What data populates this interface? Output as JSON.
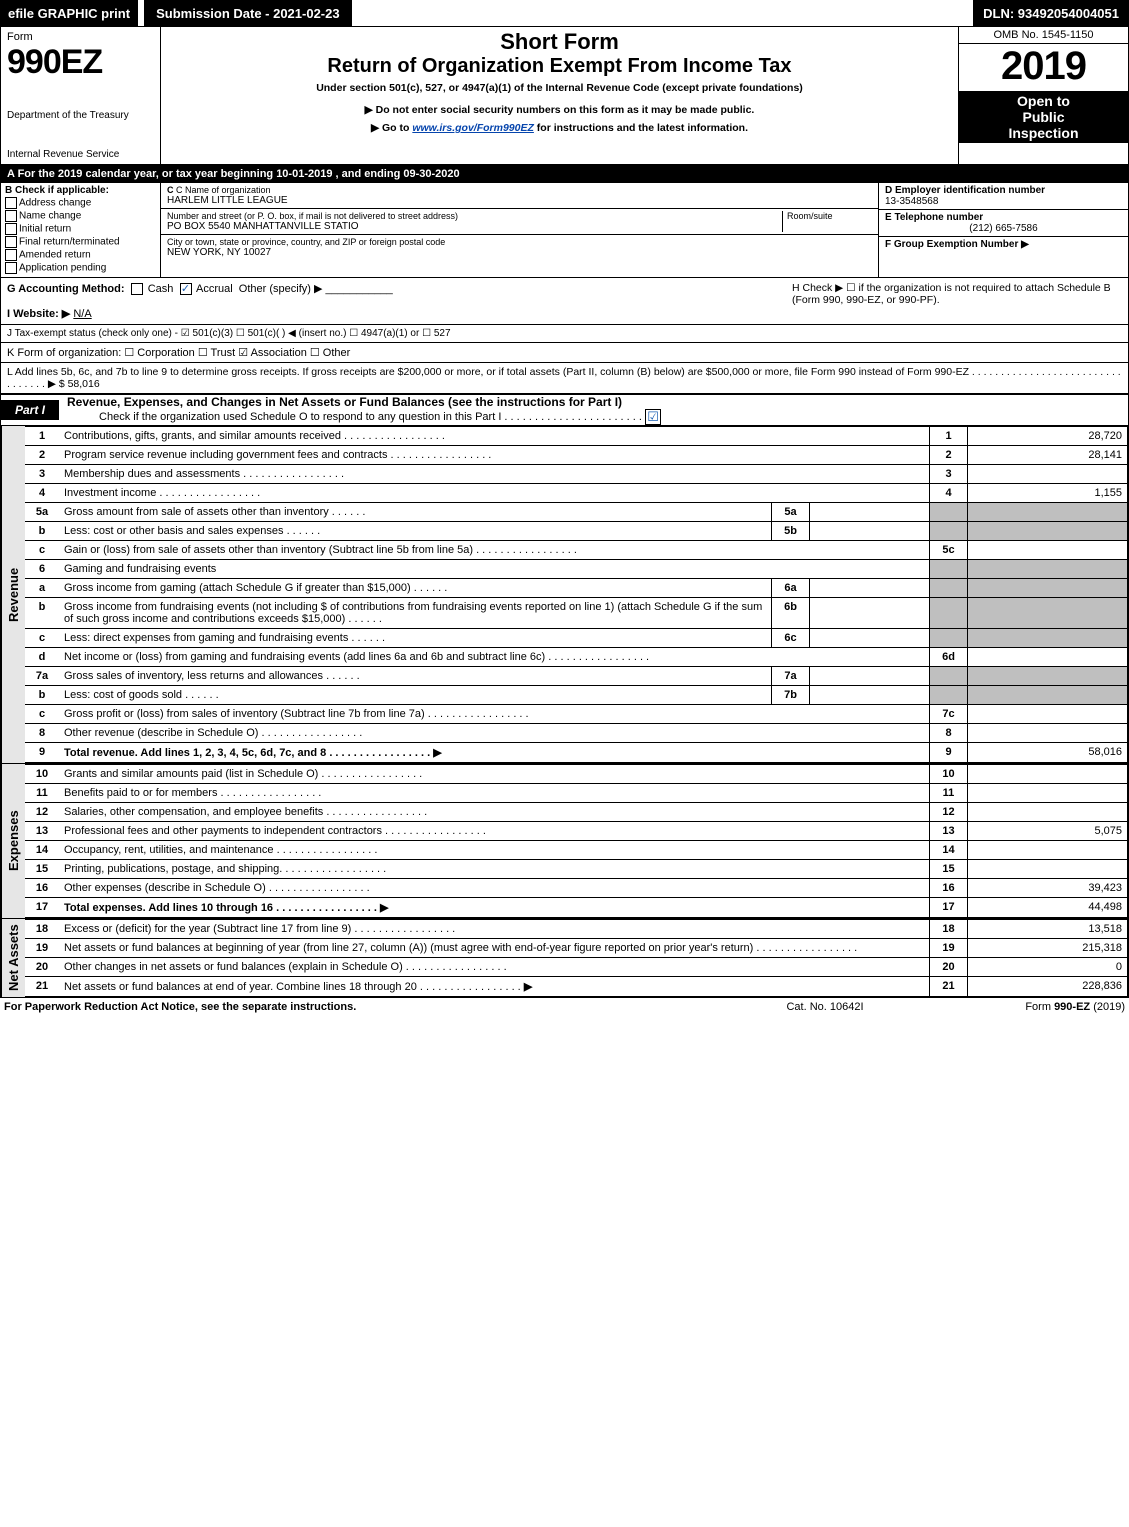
{
  "topbar": {
    "efile": "efile GRAPHIC print",
    "submission": "Submission Date - 2021-02-23",
    "dln": "DLN: 93492054004051"
  },
  "header": {
    "form_word": "Form",
    "form_number": "990EZ",
    "dept1": "Department of the Treasury",
    "dept2": "Internal Revenue Service",
    "short": "Short Form",
    "return": "Return of Organization Exempt From Income Tax",
    "under": "Under section 501(c), 527, or 4947(a)(1) of the Internal Revenue Code (except private foundations)",
    "no_ssn": "▶ Do not enter social security numbers on this form as it may be made public.",
    "goto_pre": "▶ Go to ",
    "goto_link": "www.irs.gov/Form990EZ",
    "goto_post": " for instructions and the latest information.",
    "omb": "OMB No. 1545-1150",
    "year": "2019",
    "open1": "Open to",
    "open2": "Public",
    "open3": "Inspection"
  },
  "taxyear": "A For the 2019 calendar year, or tax year beginning 10-01-2019 , and ending 09-30-2020",
  "boxB": {
    "title": "B Check if applicable:",
    "items": [
      "Address change",
      "Name change",
      "Initial return",
      "Final return/terminated",
      "Amended return",
      "Application pending"
    ]
  },
  "boxC": {
    "name_lbl": "C Name of organization",
    "name_val": "HARLEM LITTLE LEAGUE",
    "street_lbl": "Number and street (or P. O. box, if mail is not delivered to street address)",
    "room_lbl": "Room/suite",
    "street_val": "PO BOX 5540 MANHATTANVILLE STATIO",
    "city_lbl": "City or town, state or province, country, and ZIP or foreign postal code",
    "city_val": "NEW YORK, NY  10027"
  },
  "boxD": {
    "lbl": "D Employer identification number",
    "val": "13-3548568"
  },
  "boxE": {
    "lbl": "E Telephone number",
    "val": "(212) 665-7586"
  },
  "boxF": {
    "lbl": "F Group Exemption Number  ▶",
    "val": ""
  },
  "rowG": {
    "left_label": "G Accounting Method:",
    "cash": "Cash",
    "accrual": "Accrual",
    "other": "Other (specify) ▶",
    "H": "H  Check ▶  ☐  if the organization is not required to attach Schedule B (Form 990, 990-EZ, or 990-PF)."
  },
  "rowI": {
    "label": "I Website: ▶",
    "val": "N/A"
  },
  "rowJ": "J Tax-exempt status (check only one) - ☑ 501(c)(3)  ☐ 501(c)(  ) ◀ (insert no.)  ☐ 4947(a)(1) or  ☐ 527",
  "rowK": "K Form of organization:  ☐ Corporation  ☐ Trust  ☑ Association  ☐ Other",
  "rowL": "L Add lines 5b, 6c, and 7b to line 9 to determine gross receipts. If gross receipts are $200,000 or more, or if total assets (Part II, column (B) below) are $500,000 or more, file Form 990 instead of Form 990-EZ . . . . . . . . . . . . . . . . . . . . . . . . . . . . . . . . . ▶ $ 58,016",
  "part1": {
    "tag": "Part I",
    "title": "Revenue, Expenses, and Changes in Net Assets or Fund Balances (see the instructions for Part I)",
    "sub": "Check if the organization used Schedule O to respond to any question in this Part I . . . . . . . . . . . . . . . . . . . . . . .",
    "sub_checked": "☑"
  },
  "sections": {
    "revenue": "Revenue",
    "expenses": "Expenses",
    "netassets": "Net Assets"
  },
  "lines": {
    "l1": {
      "n": "1",
      "t": "Contributions, gifts, grants, and similar amounts received",
      "col": "1",
      "amt": "28,720"
    },
    "l2": {
      "n": "2",
      "t": "Program service revenue including government fees and contracts",
      "col": "2",
      "amt": "28,141"
    },
    "l3": {
      "n": "3",
      "t": "Membership dues and assessments",
      "col": "3",
      "amt": ""
    },
    "l4": {
      "n": "4",
      "t": "Investment income",
      "col": "4",
      "amt": "1,155"
    },
    "l5a": {
      "n": "5a",
      "t": "Gross amount from sale of assets other than inventory",
      "sub": "5a",
      "sv": ""
    },
    "l5b": {
      "n": "b",
      "t": "Less: cost or other basis and sales expenses",
      "sub": "5b",
      "sv": ""
    },
    "l5c": {
      "n": "c",
      "t": "Gain or (loss) from sale of assets other than inventory (Subtract line 5b from line 5a)",
      "col": "5c",
      "amt": ""
    },
    "l6": {
      "n": "6",
      "t": "Gaming and fundraising events"
    },
    "l6a": {
      "n": "a",
      "t": "Gross income from gaming (attach Schedule G if greater than $15,000)",
      "sub": "6a",
      "sv": ""
    },
    "l6b": {
      "n": "b",
      "t": "Gross income from fundraising events (not including $                of contributions from fundraising events reported on line 1) (attach Schedule G if the sum of such gross income and contributions exceeds $15,000)",
      "sub": "6b",
      "sv": ""
    },
    "l6c": {
      "n": "c",
      "t": "Less: direct expenses from gaming and fundraising events",
      "sub": "6c",
      "sv": ""
    },
    "l6d": {
      "n": "d",
      "t": "Net income or (loss) from gaming and fundraising events (add lines 6a and 6b and subtract line 6c)",
      "col": "6d",
      "amt": ""
    },
    "l7a": {
      "n": "7a",
      "t": "Gross sales of inventory, less returns and allowances",
      "sub": "7a",
      "sv": ""
    },
    "l7b": {
      "n": "b",
      "t": "Less: cost of goods sold",
      "sub": "7b",
      "sv": ""
    },
    "l7c": {
      "n": "c",
      "t": "Gross profit or (loss) from sales of inventory (Subtract line 7b from line 7a)",
      "col": "7c",
      "amt": ""
    },
    "l8": {
      "n": "8",
      "t": "Other revenue (describe in Schedule O)",
      "col": "8",
      "amt": ""
    },
    "l9": {
      "n": "9",
      "t": "Total revenue. Add lines 1, 2, 3, 4, 5c, 6d, 7c, and 8",
      "col": "9",
      "amt": "58,016",
      "arrow": "▶"
    },
    "l10": {
      "n": "10",
      "t": "Grants and similar amounts paid (list in Schedule O)",
      "col": "10",
      "amt": ""
    },
    "l11": {
      "n": "11",
      "t": "Benefits paid to or for members",
      "col": "11",
      "amt": ""
    },
    "l12": {
      "n": "12",
      "t": "Salaries, other compensation, and employee benefits",
      "col": "12",
      "amt": ""
    },
    "l13": {
      "n": "13",
      "t": "Professional fees and other payments to independent contractors",
      "col": "13",
      "amt": "5,075"
    },
    "l14": {
      "n": "14",
      "t": "Occupancy, rent, utilities, and maintenance",
      "col": "14",
      "amt": ""
    },
    "l15": {
      "n": "15",
      "t": "Printing, publications, postage, and shipping.",
      "col": "15",
      "amt": ""
    },
    "l16": {
      "n": "16",
      "t": "Other expenses (describe in Schedule O)",
      "col": "16",
      "amt": "39,423"
    },
    "l17": {
      "n": "17",
      "t": "Total expenses. Add lines 10 through 16",
      "col": "17",
      "amt": "44,498",
      "arrow": "▶"
    },
    "l18": {
      "n": "18",
      "t": "Excess or (deficit) for the year (Subtract line 17 from line 9)",
      "col": "18",
      "amt": "13,518"
    },
    "l19": {
      "n": "19",
      "t": "Net assets or fund balances at beginning of year (from line 27, column (A)) (must agree with end-of-year figure reported on prior year's return)",
      "col": "19",
      "amt": "215,318"
    },
    "l20": {
      "n": "20",
      "t": "Other changes in net assets or fund balances (explain in Schedule O)",
      "col": "20",
      "amt": "0"
    },
    "l21": {
      "n": "21",
      "t": "Net assets or fund balances at end of year. Combine lines 18 through 20",
      "col": "21",
      "amt": "228,836",
      "arrow": "▶"
    }
  },
  "footer": {
    "left": "For Paperwork Reduction Act Notice, see the separate instructions.",
    "mid": "Cat. No. 10642I",
    "right": "Form 990-EZ (2019)"
  },
  "colors": {
    "black": "#000000",
    "white": "#ffffff",
    "grey_cell": "#bfbfbf",
    "side_grey": "#e6e6e6",
    "link_blue": "#0645ad",
    "check_blue": "#1a5fb4"
  }
}
